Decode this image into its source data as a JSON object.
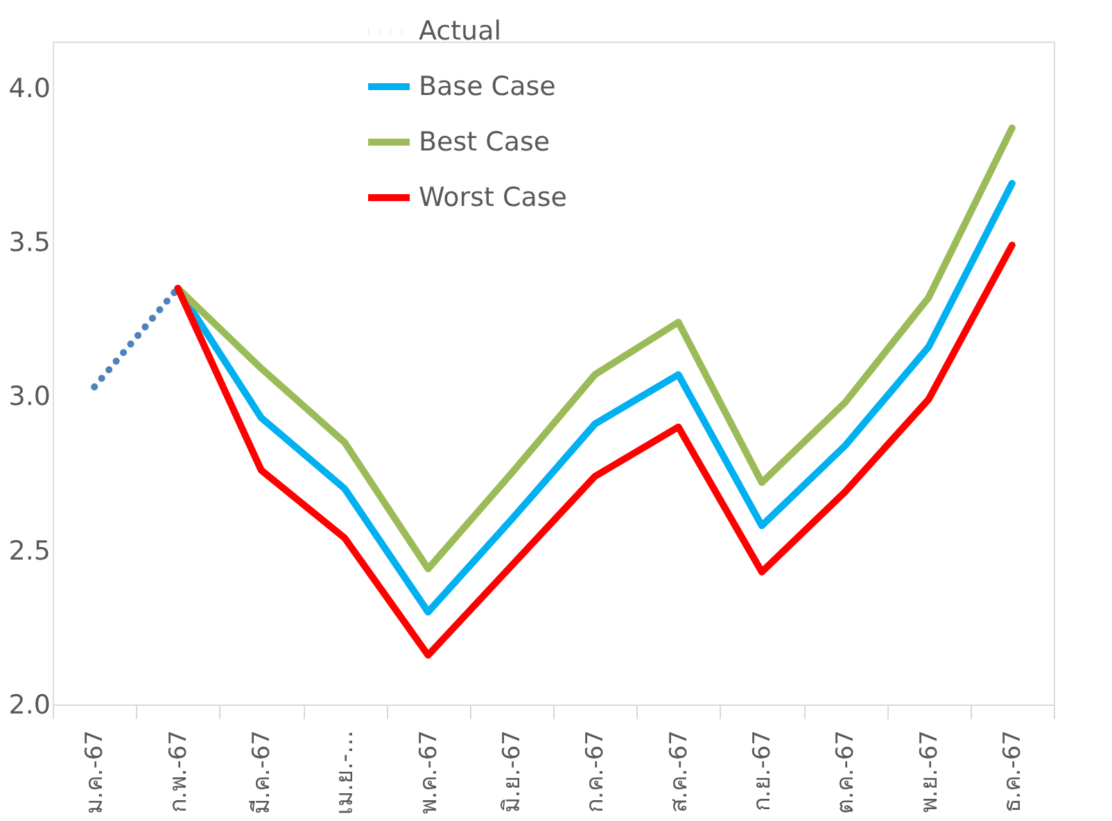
{
  "chart_data": {
    "type": "line",
    "categories": [
      "ม.ค.-67",
      "ก.พ.-67",
      "มี.ค.-67",
      "เม.ย.-…",
      "พ.ค.-67",
      "มิ.ย.-67",
      "ก.ค.-67",
      "ส.ค.-67",
      "ก.ย.-67",
      "ต.ค.-67",
      "พ.ย.-67",
      "ธ.ค.-67"
    ],
    "series": [
      {
        "name": "Actual",
        "color": "#4f81bd",
        "line_style": "dotted",
        "values": [
          3.03,
          3.35,
          null,
          null,
          null,
          null,
          null,
          null,
          null,
          null,
          null,
          null
        ]
      },
      {
        "name": "Base Case",
        "color": "#00b0f0",
        "line_style": "solid",
        "values": [
          null,
          3.35,
          2.93,
          2.7,
          2.3,
          2.6,
          2.91,
          3.07,
          2.58,
          2.84,
          3.16,
          3.69
        ]
      },
      {
        "name": "Best Case",
        "color": "#9bbb59",
        "line_style": "solid",
        "values": [
          null,
          3.35,
          3.09,
          2.85,
          2.44,
          2.75,
          3.07,
          3.24,
          2.72,
          2.98,
          3.32,
          3.87
        ]
      },
      {
        "name": "Worst Case",
        "color": "#ff0000",
        "line_style": "solid",
        "values": [
          null,
          3.35,
          2.76,
          2.54,
          2.16,
          2.45,
          2.74,
          2.9,
          2.43,
          2.69,
          2.99,
          3.49
        ]
      }
    ],
    "ylim": [
      2,
      4.15
    ],
    "yticks": [
      {
        "value": 2,
        "label": "2.0"
      },
      {
        "value": 2.5,
        "label": "2.5"
      },
      {
        "value": 3,
        "label": "3.0"
      },
      {
        "value": 3.5,
        "label": "3.5"
      },
      {
        "value": 4,
        "label": "4.0"
      }
    ],
    "grid": false,
    "legend": "top",
    "marker": "none"
  }
}
